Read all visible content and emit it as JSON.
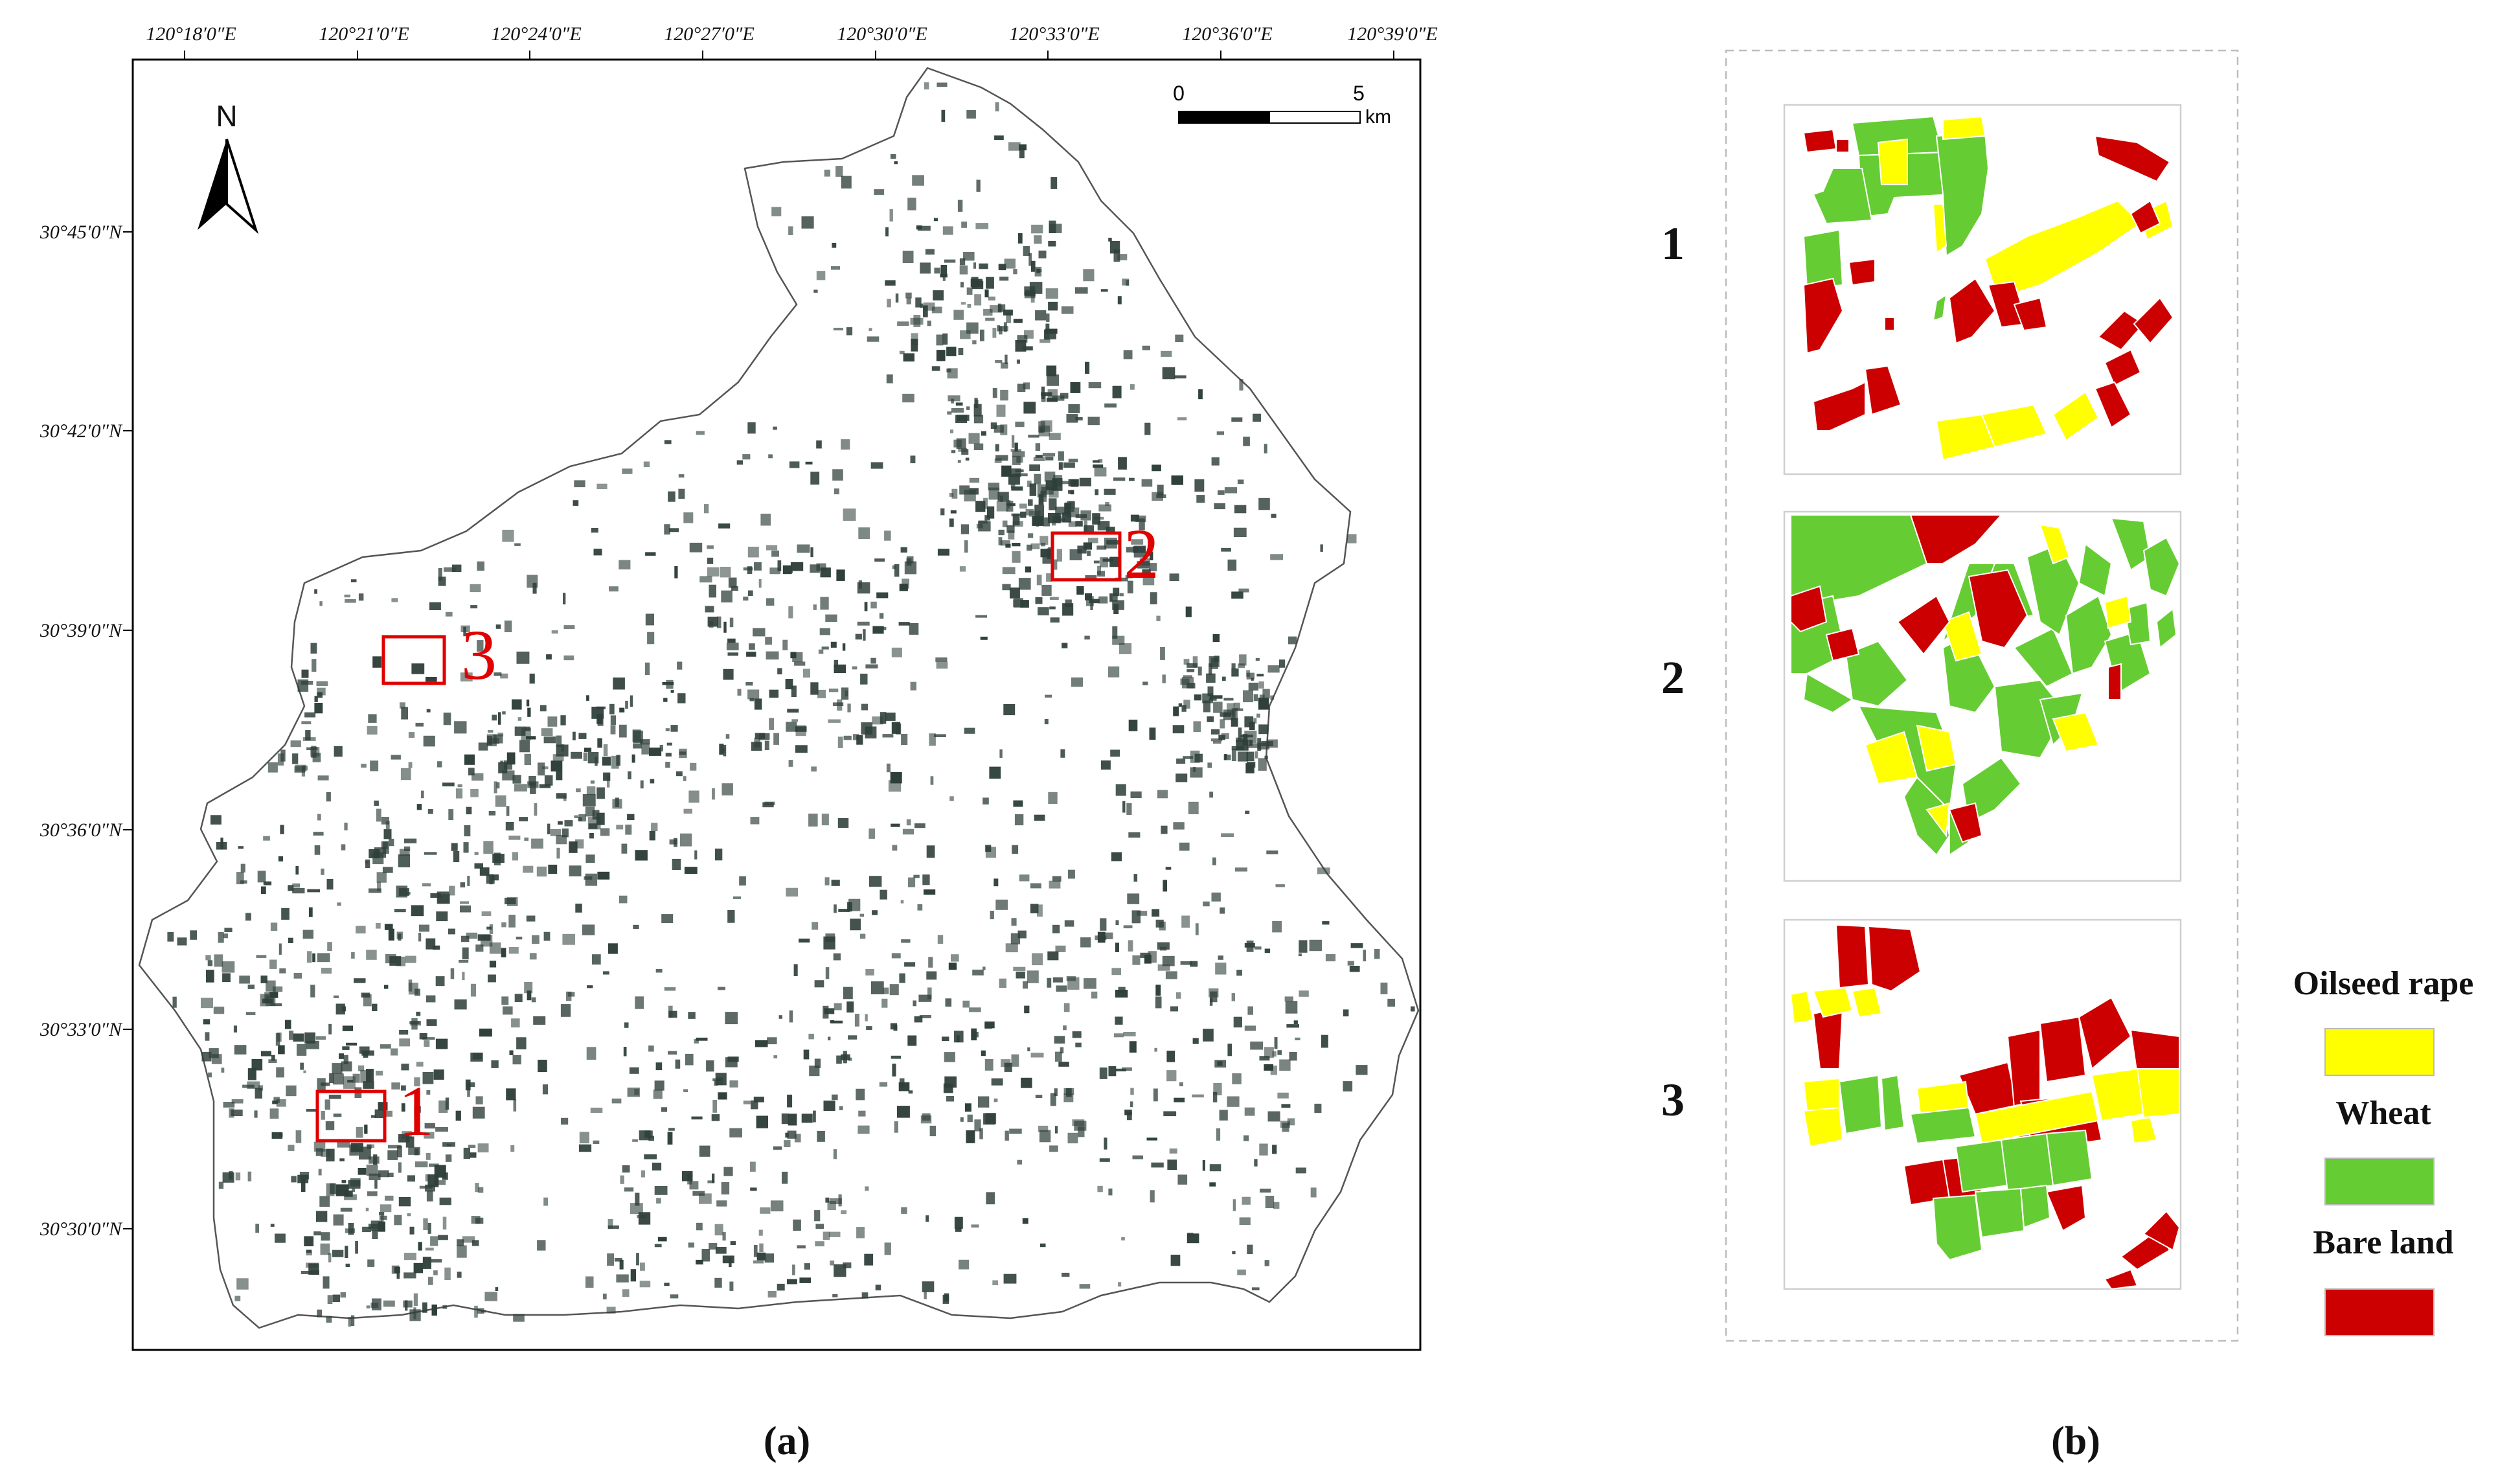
{
  "panel_a": {
    "label": "(a)",
    "lon_labels": [
      "120°18′0″E",
      "120°21′0″E",
      "120°24′0″E",
      "120°27′0″E",
      "120°30′0″E",
      "120°33′0″E",
      "120°36′0″E",
      "120°39′0″E"
    ],
    "lat_labels": [
      "30°45′0″N",
      "30°42′0″N",
      "30°39′0″N",
      "30°36′0″N",
      "30°33′0″N",
      "30°30′0″N"
    ],
    "north_label": "N",
    "scale_bar": {
      "start": "0",
      "end": "5",
      "unit": "km"
    },
    "boxes": [
      {
        "id": "1",
        "label": "1"
      },
      {
        "id": "2",
        "label": "2"
      },
      {
        "id": "3",
        "label": "3"
      }
    ]
  },
  "panel_b": {
    "label": "(b)",
    "insets": [
      {
        "label": "1"
      },
      {
        "label": "2"
      },
      {
        "label": "3"
      }
    ],
    "legend": [
      {
        "name": "Oilseed rape",
        "color": "#FFFF00"
      },
      {
        "name": "Wheat",
        "color": "#66CC33"
      },
      {
        "name": "Bare land",
        "color": "#CC0000"
      }
    ]
  },
  "colors": {
    "frame_color": "#000000",
    "fields_color": "#2F3F3A",
    "box_color": "#E00000",
    "boundary_color": "#555555"
  }
}
